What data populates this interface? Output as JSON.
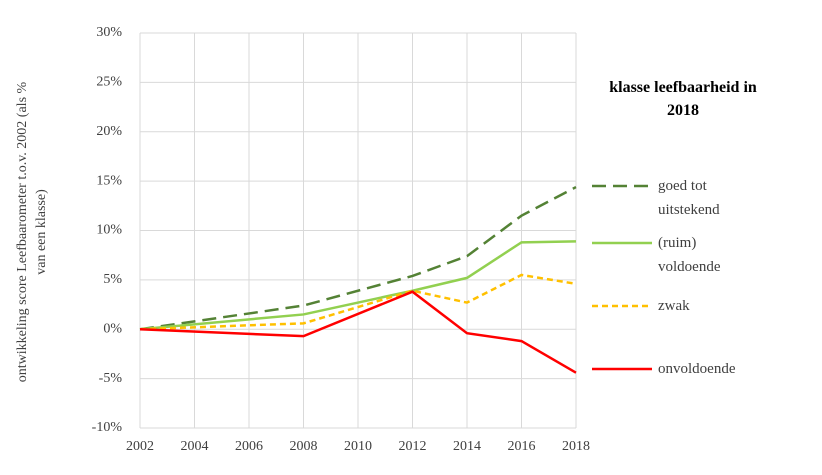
{
  "chart_data": {
    "type": "line",
    "y_label": "ontwikkeling score Leefbaarometer t.o.v. 2002 (als % van een klasse)",
    "legend_title": "klasse leefbaarheid in 2018",
    "x": [
      2002,
      2008,
      2012,
      2014,
      2016,
      2018
    ],
    "series": [
      {
        "name": "goed tot uitstekend",
        "color": "#548235",
        "dash": "long",
        "values": [
          0,
          2.4,
          5.4,
          7.4,
          11.5,
          14.4
        ]
      },
      {
        "name": "(ruim) voldoende",
        "color": "#92d050",
        "dash": "solid",
        "values": [
          0,
          1.5,
          3.9,
          5.2,
          8.8,
          8.9
        ]
      },
      {
        "name": "zwak",
        "color": "#ffc000",
        "dash": "short",
        "values": [
          0,
          0.6,
          3.9,
          2.7,
          5.5,
          4.6
        ]
      },
      {
        "name": "onvoldoende",
        "color": "#ff0000",
        "dash": "solid",
        "values": [
          0,
          -0.7,
          3.8,
          -0.4,
          -1.2,
          -4.4
        ]
      }
    ],
    "xlim": [
      2002,
      2018
    ],
    "xticks": [
      2002,
      2004,
      2006,
      2008,
      2010,
      2012,
      2014,
      2016,
      2018
    ],
    "ylim": [
      -10,
      30
    ],
    "yticks": [
      {
        "value": -10,
        "label": "-10%"
      },
      {
        "value": -5,
        "label": "-5%"
      },
      {
        "value": 0,
        "label": "0%"
      },
      {
        "value": 5,
        "label": "5%"
      },
      {
        "value": 10,
        "label": "10%"
      },
      {
        "value": 15,
        "label": "15%"
      },
      {
        "value": 20,
        "label": "20%"
      },
      {
        "value": 25,
        "label": "25%"
      },
      {
        "value": 30,
        "label": "30%"
      }
    ],
    "grid": true,
    "legend": "right"
  }
}
